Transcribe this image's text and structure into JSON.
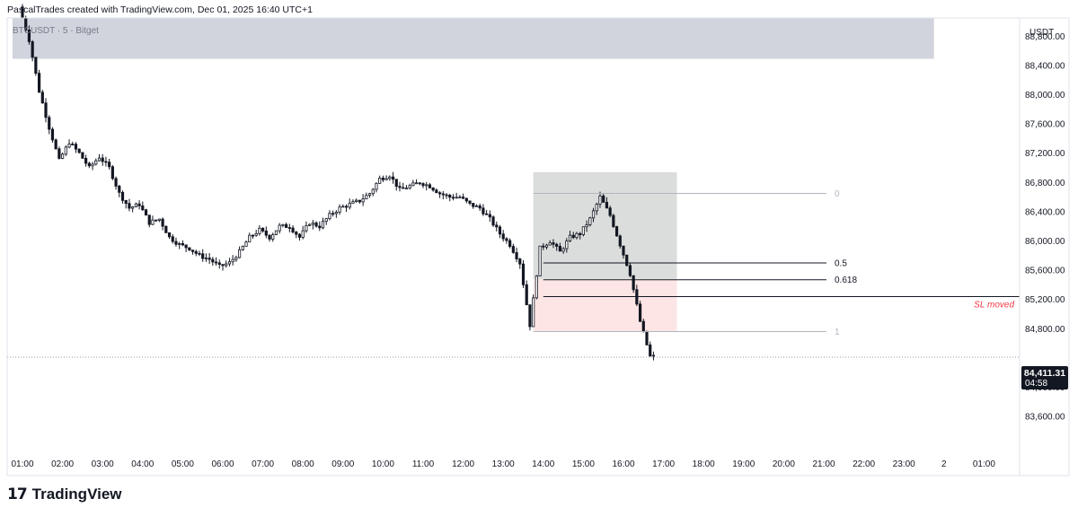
{
  "header": {
    "credit": "PascalTrades created with TradingView.com, Dec 01, 2025 16:40 UTC+1"
  },
  "chart_data": {
    "type": "candlestick",
    "symbol_label": "BTCUSDT · 5 · Bitget",
    "currency": "USDT",
    "x_ticks": [
      "01:00",
      "02:00",
      "03:00",
      "04:00",
      "05:00",
      "06:00",
      "07:00",
      "08:00",
      "09:00",
      "10:00",
      "11:00",
      "12:00",
      "13:00",
      "14:00",
      "15:00",
      "16:00",
      "17:00",
      "18:00",
      "19:00",
      "20:00",
      "21:00",
      "22:00",
      "23:00",
      "2",
      "01:00"
    ],
    "y_ticks": [
      "88,800.00",
      "88,400.00",
      "88,000.00",
      "87,600.00",
      "87,200.00",
      "86,800.00",
      "86,400.00",
      "86,000.00",
      "85,600.00",
      "85,200.00",
      "84,800.00",
      "84,000.00",
      "83,600.00"
    ],
    "ylim": [
      83400,
      89300
    ],
    "current_price": {
      "value": 84411.31,
      "label": "84,411.31",
      "countdown": "04:58"
    },
    "zones": [
      {
        "name": "upper-supply-zone",
        "x_start": "00:45",
        "x_end": "23:45",
        "y_top": 89300,
        "y_bottom": 88490,
        "color": "#d1d4dc"
      },
      {
        "name": "position-profit-zone",
        "x_start": "13:45",
        "x_end": "17:20",
        "y_top": 86940,
        "y_bottom": 85480,
        "color": "#dadddb"
      },
      {
        "name": "position-stop-zone",
        "x_start": "13:45",
        "x_end": "17:20",
        "y_top": 85480,
        "y_bottom": 84760,
        "color": "#fde5e5"
      }
    ],
    "fib_levels": [
      {
        "label": "0",
        "price": 86650,
        "color": "#b2b5be"
      },
      {
        "label": "0.5",
        "price": 85700,
        "color": "#131722"
      },
      {
        "label": "0.618",
        "price": 85470,
        "color": "#131722"
      },
      {
        "label": "1",
        "price": 84760,
        "color": "#b2b5be"
      }
    ],
    "sl_line": {
      "label": "SL moved",
      "price": 85240,
      "color": "#f23645"
    },
    "price_path": [
      [
        "01:00",
        89200
      ],
      [
        "01:15",
        88750
      ],
      [
        "01:30",
        88050
      ],
      [
        "01:45",
        87550
      ],
      [
        "02:00",
        87100
      ],
      [
        "02:15",
        87350
      ],
      [
        "02:30",
        87200
      ],
      [
        "02:45",
        87000
      ],
      [
        "03:00",
        87150
      ],
      [
        "03:15",
        87000
      ],
      [
        "03:30",
        86650
      ],
      [
        "03:45",
        86450
      ],
      [
        "04:00",
        86500
      ],
      [
        "04:15",
        86250
      ],
      [
        "04:30",
        86300
      ],
      [
        "04:45",
        86050
      ],
      [
        "05:00",
        85950
      ],
      [
        "05:15",
        85900
      ],
      [
        "05:30",
        85800
      ],
      [
        "05:45",
        85750
      ],
      [
        "06:00",
        85650
      ],
      [
        "06:15",
        85700
      ],
      [
        "06:30",
        85850
      ],
      [
        "06:45",
        86050
      ],
      [
        "07:00",
        86150
      ],
      [
        "07:15",
        86050
      ],
      [
        "07:30",
        86200
      ],
      [
        "07:45",
        86200
      ],
      [
        "08:00",
        86050
      ],
      [
        "08:15",
        86250
      ],
      [
        "08:30",
        86200
      ],
      [
        "08:45",
        86350
      ],
      [
        "09:00",
        86450
      ],
      [
        "09:15",
        86500
      ],
      [
        "09:30",
        86550
      ],
      [
        "09:45",
        86650
      ],
      [
        "10:00",
        86850
      ],
      [
        "10:15",
        86900
      ],
      [
        "10:30",
        86700
      ],
      [
        "10:45",
        86750
      ],
      [
        "11:00",
        86800
      ],
      [
        "11:15",
        86750
      ],
      [
        "11:30",
        86650
      ],
      [
        "11:45",
        86600
      ],
      [
        "12:00",
        86600
      ],
      [
        "12:15",
        86500
      ],
      [
        "12:30",
        86450
      ],
      [
        "12:45",
        86300
      ],
      [
        "13:00",
        86100
      ],
      [
        "13:15",
        85950
      ],
      [
        "13:30",
        85700
      ],
      [
        "13:45",
        84850
      ],
      [
        "14:00",
        85900
      ],
      [
        "14:15",
        86000
      ],
      [
        "14:30",
        85850
      ],
      [
        "14:45",
        86050
      ],
      [
        "15:00",
        86100
      ],
      [
        "15:15",
        86300
      ],
      [
        "15:30",
        86600
      ],
      [
        "15:45",
        86350
      ],
      [
        "16:00",
        85950
      ],
      [
        "16:15",
        85550
      ],
      [
        "16:30",
        84900
      ],
      [
        "16:45",
        84420
      ]
    ]
  }
}
